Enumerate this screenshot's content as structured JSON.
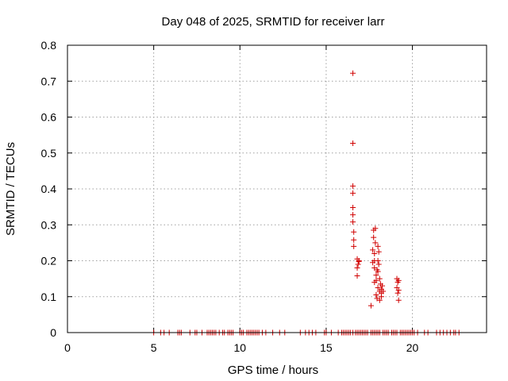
{
  "chart_data": {
    "type": "scatter",
    "title": "Day 048 of 2025, SRMTID for receiver larr",
    "xlabel": "GPS time / hours",
    "ylabel": "SRMTID / TECUs",
    "xlim": [
      0,
      24.3
    ],
    "ylim": [
      0,
      0.8
    ],
    "xticks": [
      0,
      5,
      10,
      15,
      20
    ],
    "xtick_labels": [
      "0",
      "5",
      "10",
      "15",
      "20"
    ],
    "yticks": [
      0,
      0.1,
      0.2,
      0.3,
      0.4,
      0.5,
      0.6,
      0.7,
      0.8
    ],
    "ytick_labels": [
      "0",
      "0.1",
      "0.2",
      "0.3",
      "0.4",
      "0.5",
      "0.6",
      "0.7",
      "0.8"
    ],
    "grid": true,
    "legend": "none",
    "marker": "+",
    "color": "#d00000",
    "series": [
      {
        "name": "SRMTID",
        "x": [
          5.0,
          5.4,
          5.6,
          5.9,
          6.4,
          6.5,
          6.6,
          7.1,
          7.4,
          7.5,
          7.8,
          8.1,
          8.2,
          8.3,
          8.4,
          8.5,
          8.6,
          8.8,
          9.0,
          9.1,
          9.3,
          9.4,
          9.5,
          9.6,
          10.0,
          10.1,
          10.2,
          10.4,
          10.5,
          10.6,
          10.7,
          10.8,
          10.9,
          11.0,
          11.1,
          11.3,
          11.5,
          11.9,
          12.3,
          12.6,
          13.5,
          13.8,
          14.0,
          14.2,
          14.4,
          14.9,
          15.0,
          15.3,
          15.7,
          15.9,
          16.0,
          16.1,
          16.2,
          16.3,
          16.4,
          16.55,
          16.7,
          16.8,
          16.9,
          17.0,
          17.1,
          17.2,
          17.3,
          17.4,
          17.6,
          17.7,
          17.8,
          17.9,
          18.0,
          18.1,
          18.3,
          18.4,
          18.5,
          18.6,
          18.8,
          18.9,
          19.0,
          19.1,
          19.3,
          19.4,
          19.5,
          19.6,
          19.7,
          19.8,
          19.9,
          20.0,
          20.1,
          20.3,
          20.7,
          20.9,
          21.4,
          21.6,
          21.8,
          22.0,
          22.2,
          22.4,
          22.5,
          22.7,
          16.55,
          16.55,
          16.55,
          16.55,
          16.55,
          16.55,
          16.55,
          16.6,
          16.6,
          16.6,
          16.8,
          16.8,
          16.8,
          16.85,
          16.9,
          16.9,
          17.6,
          17.7,
          17.7,
          17.75,
          17.75,
          17.8,
          17.8,
          17.8,
          17.8,
          17.85,
          17.85,
          17.9,
          17.9,
          17.9,
          17.95,
          17.95,
          18.0,
          18.0,
          18.0,
          18.0,
          18.05,
          18.05,
          18.1,
          18.1,
          18.1,
          18.15,
          18.2,
          18.2,
          18.2,
          18.25,
          18.3,
          19.1,
          19.1,
          19.15,
          19.15,
          19.2,
          19.2,
          19.2
        ],
        "y": [
          0,
          0,
          0,
          0,
          0,
          0,
          0,
          0,
          0,
          0,
          0,
          0,
          0,
          0,
          0,
          0,
          0,
          0,
          0,
          0,
          0,
          0,
          0,
          0,
          0,
          0,
          0,
          0,
          0,
          0,
          0,
          0,
          0,
          0,
          0,
          0,
          0,
          0,
          0,
          0,
          0,
          0,
          0,
          0,
          0,
          0,
          0,
          0,
          0,
          0,
          0,
          0,
          0,
          0,
          0,
          0,
          0,
          0,
          0,
          0,
          0,
          0,
          0,
          0,
          0,
          0,
          0,
          0,
          0,
          0,
          0,
          0,
          0,
          0,
          0,
          0,
          0,
          0,
          0,
          0,
          0,
          0,
          0,
          0,
          0,
          0,
          0,
          0,
          0,
          0,
          0,
          0,
          0,
          0,
          0,
          0,
          0,
          0,
          0.722,
          0.527,
          0.408,
          0.388,
          0.348,
          0.328,
          0.308,
          0.28,
          0.24,
          0.258,
          0.205,
          0.18,
          0.158,
          0.19,
          0.198,
          0.2,
          0.075,
          0.23,
          0.195,
          0.285,
          0.265,
          0.22,
          0.2,
          0.18,
          0.14,
          0.29,
          0.25,
          0.16,
          0.145,
          0.105,
          0.175,
          0.095,
          0.24,
          0.2,
          0.17,
          0.125,
          0.225,
          0.19,
          0.15,
          0.115,
          0.09,
          0.135,
          0.12,
          0.11,
          0.1,
          0.13,
          0.115,
          0.15,
          0.125,
          0.14,
          0.11,
          0.118,
          0.09,
          0.145
        ]
      }
    ]
  }
}
